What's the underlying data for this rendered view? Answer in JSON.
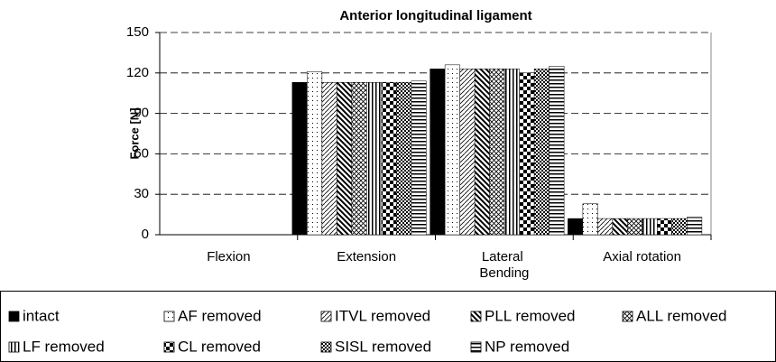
{
  "chart_data": {
    "type": "bar",
    "title": "Anterior longitudinal ligament",
    "y_label": "Force [N]",
    "categories": [
      "Flexion",
      "Extension",
      "Lateral Bending",
      "Axial rotation"
    ],
    "ylim": [
      0,
      150
    ],
    "yticks": [
      0,
      30,
      60,
      90,
      120,
      150
    ],
    "grid": true,
    "legend": "bottom",
    "series": [
      {
        "name": "intact",
        "color": "#000000",
        "pattern": "solid",
        "values": [
          0,
          113,
          123,
          12
        ]
      },
      {
        "name": "AF removed",
        "color": "#000000",
        "pattern": "dots",
        "values": [
          0,
          121,
          126,
          23
        ]
      },
      {
        "name": "ITVL removed",
        "color": "#000000",
        "pattern": "diag-fine",
        "values": [
          0,
          113,
          123,
          12
        ]
      },
      {
        "name": "PLL removed",
        "color": "#000000",
        "pattern": "diag-thick",
        "values": [
          0,
          113,
          123,
          12
        ]
      },
      {
        "name": "ALL removed",
        "color": "#000000",
        "pattern": "cross",
        "values": [
          0,
          113,
          123,
          12
        ]
      },
      {
        "name": "LF removed",
        "color": "#000000",
        "pattern": "vertical",
        "values": [
          0,
          113,
          123,
          12
        ]
      },
      {
        "name": "CL removed",
        "color": "#000000",
        "pattern": "checker",
        "values": [
          0,
          113,
          120,
          12
        ]
      },
      {
        "name": "SISL removed",
        "color": "#000000",
        "pattern": "checker-fine",
        "values": [
          0,
          113,
          123,
          12
        ]
      },
      {
        "name": "NP removed",
        "color": "#000000",
        "pattern": "horizontal",
        "values": [
          0,
          114,
          125,
          13
        ]
      }
    ]
  }
}
